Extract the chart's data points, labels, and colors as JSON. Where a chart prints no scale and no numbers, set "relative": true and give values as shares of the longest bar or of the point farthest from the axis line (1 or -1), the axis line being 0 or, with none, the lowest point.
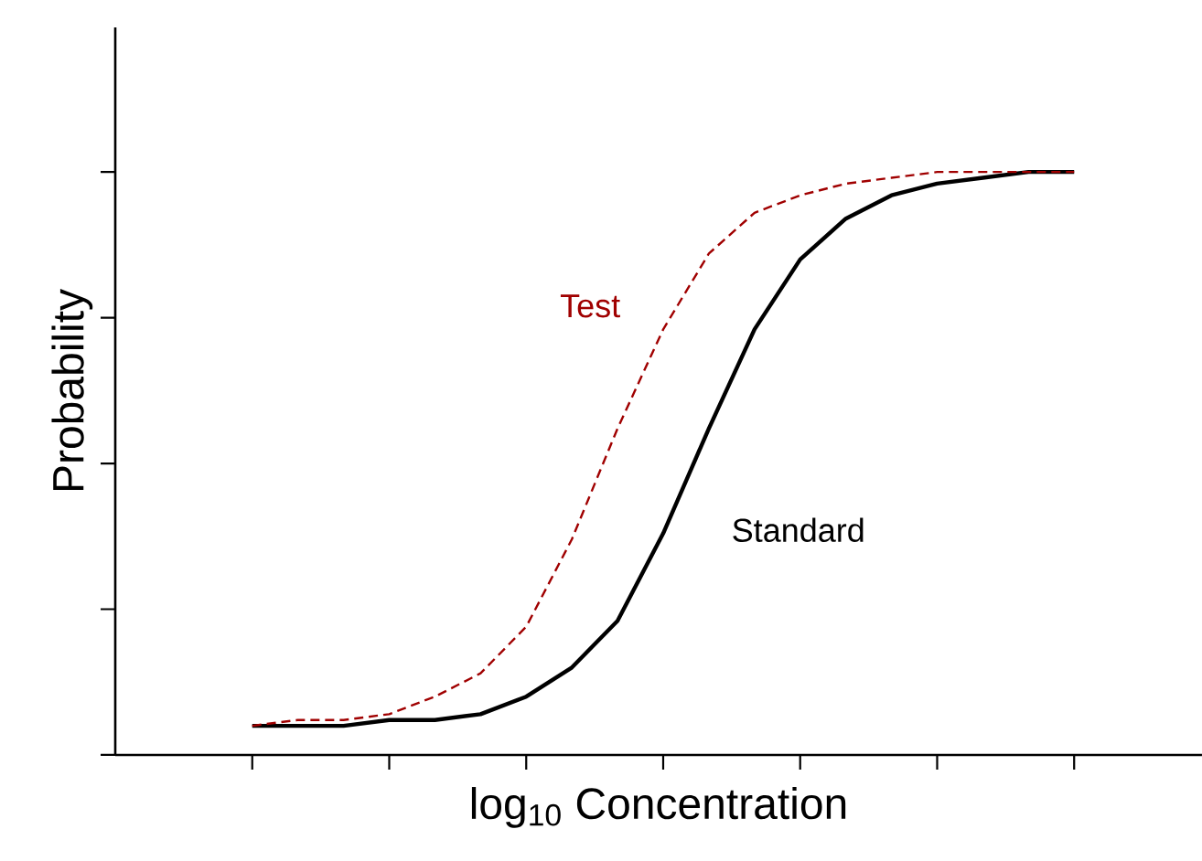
{
  "chart_data": {
    "type": "line",
    "xlabel": "log$_{10}$ Concentration",
    "ylabel": "Probability",
    "relative": true,
    "categories": [
      null,
      null,
      null,
      null,
      null,
      null,
      null,
      null,
      null,
      null,
      null,
      null,
      null,
      null,
      null,
      null,
      null,
      null,
      null
    ],
    "series": [
      {
        "name": "Standard",
        "color": "#000000",
        "line_style": "solid",
        "values": [
          0.05,
          0.05,
          0.05,
          0.06,
          0.06,
          0.07,
          0.1,
          0.15,
          0.23,
          0.38,
          0.56,
          0.73,
          0.85,
          0.92,
          0.96,
          0.98,
          0.99,
          1.0,
          1.0
        ]
      },
      {
        "name": "Test",
        "color": "#a00000",
        "line_style": "dashed",
        "values": [
          0.05,
          0.06,
          0.06,
          0.07,
          0.1,
          0.14,
          0.22,
          0.37,
          0.56,
          0.73,
          0.86,
          0.93,
          0.96,
          0.98,
          0.99,
          1.0,
          1.0,
          1.0,
          1.0
        ]
      }
    ],
    "marker": "none",
    "grid": false,
    "legend": false
  }
}
